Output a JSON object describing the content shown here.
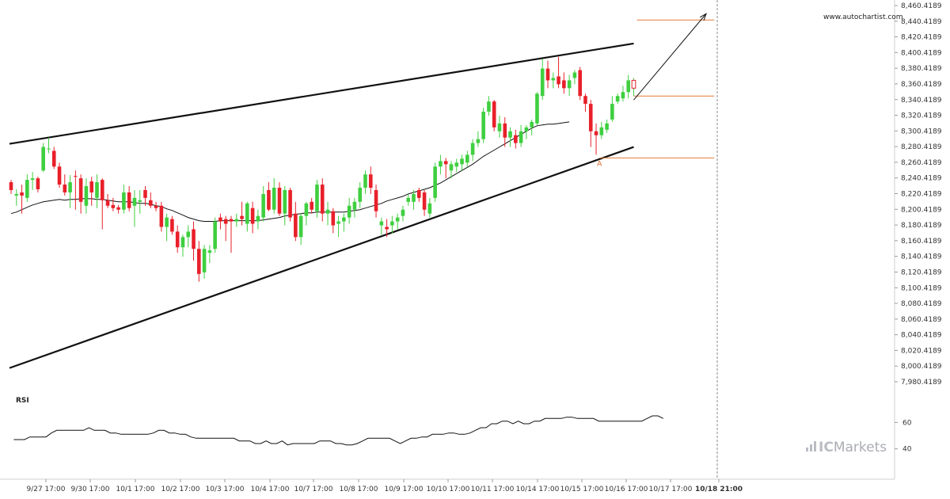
{
  "colors": {
    "bull": "#3fcf3f",
    "bear": "#e8202a",
    "channel": "#111111",
    "level": "#e07b39",
    "ma": "#111111",
    "rsi": "#111111",
    "projection": "#111111",
    "brand": "#a9acb3"
  },
  "watermark": "www.autochartist.com",
  "point_label": "A",
  "brand": {
    "prefix": "IC",
    "suffix": "Markets"
  },
  "rsi": {
    "label": "RSI",
    "ticks": [
      "60",
      "40"
    ]
  },
  "chart_data": {
    "type": "candlestick",
    "title": "",
    "y_ticks": [
      "8,460.4189",
      "8,440.4189",
      "8,420.4189",
      "8,400.4189",
      "8,380.4189",
      "8,360.4189",
      "8,340.4189",
      "8,320.4189",
      "8,300.4189",
      "8,280.4189",
      "8,260.4189",
      "8,240.4189",
      "8,220.4189",
      "8,200.4189",
      "8,180.4189",
      "8,160.4189",
      "8,140.4189",
      "8,120.4189",
      "8,100.4189",
      "8,080.4189",
      "8,060.4189",
      "8,040.4189",
      "8,020.4189",
      "8,000.4189",
      "7,980.4189"
    ],
    "ylim": [
      7980.4189,
      8460.4189
    ],
    "x_ticks": [
      "9/27 17:00",
      "9/30 17:00",
      "10/1 17:00",
      "10/2 17:00",
      "10/3 17:00",
      "10/4 17:00",
      "10/7 17:00",
      "10/8 17:00",
      "10/9 17:00",
      "10/10 17:00",
      "10/11 17:00",
      "10/14 17:00",
      "10/15 17:00",
      "10/16 17:00",
      "10/17 17:00",
      "10/18 21:00"
    ],
    "highlight_x_tick": "10/18 21:00",
    "candles": [
      {
        "o": 8235,
        "h": 8238,
        "l": 8220,
        "c": 8225
      },
      {
        "o": 8218,
        "h": 8226,
        "l": 8205,
        "c": 8220
      },
      {
        "o": 8222,
        "h": 8232,
        "l": 8195,
        "c": 8218
      },
      {
        "o": 8215,
        "h": 8245,
        "l": 8210,
        "c": 8238
      },
      {
        "o": 8238,
        "h": 8248,
        "l": 8225,
        "c": 8240
      },
      {
        "o": 8240,
        "h": 8242,
        "l": 8222,
        "c": 8226
      },
      {
        "o": 8250,
        "h": 8285,
        "l": 8248,
        "c": 8280
      },
      {
        "o": 8278,
        "h": 8292,
        "l": 8272,
        "c": 8278
      },
      {
        "o": 8275,
        "h": 8280,
        "l": 8252,
        "c": 8255
      },
      {
        "o": 8255,
        "h": 8260,
        "l": 8228,
        "c": 8232
      },
      {
        "o": 8232,
        "h": 8245,
        "l": 8218,
        "c": 8222
      },
      {
        "o": 8222,
        "h": 8244,
        "l": 8202,
        "c": 8235
      },
      {
        "o": 8243,
        "h": 8250,
        "l": 8200,
        "c": 8242
      },
      {
        "o": 8240,
        "h": 8245,
        "l": 8195,
        "c": 8210
      },
      {
        "o": 8205,
        "h": 8240,
        "l": 8195,
        "c": 8230
      },
      {
        "o": 8236,
        "h": 8242,
        "l": 8205,
        "c": 8222
      },
      {
        "o": 8215,
        "h": 8245,
        "l": 8202,
        "c": 8235
      },
      {
        "o": 8238,
        "h": 8240,
        "l": 8175,
        "c": 8212
      },
      {
        "o": 8212,
        "h": 8220,
        "l": 8202,
        "c": 8205
      },
      {
        "o": 8206,
        "h": 8215,
        "l": 8198,
        "c": 8202
      },
      {
        "o": 8203,
        "h": 8206,
        "l": 8195,
        "c": 8200
      },
      {
        "o": 8200,
        "h": 8232,
        "l": 8195,
        "c": 8222
      },
      {
        "o": 8222,
        "h": 8230,
        "l": 8198,
        "c": 8202
      },
      {
        "o": 8205,
        "h": 8225,
        "l": 8178,
        "c": 8215
      },
      {
        "o": 8210,
        "h": 8225,
        "l": 8195,
        "c": 8212
      },
      {
        "o": 8225,
        "h": 8230,
        "l": 8205,
        "c": 8215
      },
      {
        "o": 8212,
        "h": 8222,
        "l": 8202,
        "c": 8205
      },
      {
        "o": 8205,
        "h": 8210,
        "l": 8198,
        "c": 8202
      },
      {
        "o": 8205,
        "h": 8210,
        "l": 8172,
        "c": 8178
      },
      {
        "o": 8178,
        "h": 8195,
        "l": 8160,
        "c": 8190
      },
      {
        "o": 8188,
        "h": 8192,
        "l": 8168,
        "c": 8172
      },
      {
        "o": 8172,
        "h": 8180,
        "l": 8145,
        "c": 8152
      },
      {
        "o": 8152,
        "h": 8168,
        "l": 8140,
        "c": 8165
      },
      {
        "o": 8165,
        "h": 8180,
        "l": 8152,
        "c": 8172
      },
      {
        "o": 8175,
        "h": 8185,
        "l": 8135,
        "c": 8150
      },
      {
        "o": 8150,
        "h": 8160,
        "l": 8108,
        "c": 8118
      },
      {
        "o": 8120,
        "h": 8155,
        "l": 8112,
        "c": 8150
      },
      {
        "o": 8145,
        "h": 8155,
        "l": 8132,
        "c": 8148
      },
      {
        "o": 8150,
        "h": 8190,
        "l": 8145,
        "c": 8185
      },
      {
        "o": 8190,
        "h": 8195,
        "l": 8175,
        "c": 8185
      },
      {
        "o": 8188,
        "h": 8192,
        "l": 8160,
        "c": 8182
      },
      {
        "o": 8188,
        "h": 8192,
        "l": 8145,
        "c": 8185
      },
      {
        "o": 8185,
        "h": 8195,
        "l": 8178,
        "c": 8188
      },
      {
        "o": 8192,
        "h": 8210,
        "l": 8180,
        "c": 8188
      },
      {
        "o": 8182,
        "h": 8210,
        "l": 8172,
        "c": 8208
      },
      {
        "o": 8202,
        "h": 8210,
        "l": 8170,
        "c": 8182
      },
      {
        "o": 8185,
        "h": 8200,
        "l": 8175,
        "c": 8192
      },
      {
        "o": 8190,
        "h": 8230,
        "l": 8185,
        "c": 8220
      },
      {
        "o": 8225,
        "h": 8235,
        "l": 8198,
        "c": 8200
      },
      {
        "o": 8200,
        "h": 8240,
        "l": 8195,
        "c": 8228
      },
      {
        "o": 8228,
        "h": 8235,
        "l": 8192,
        "c": 8195
      },
      {
        "o": 8195,
        "h": 8230,
        "l": 8180,
        "c": 8225
      },
      {
        "o": 8225,
        "h": 8228,
        "l": 8185,
        "c": 8190
      },
      {
        "o": 8195,
        "h": 8210,
        "l": 8160,
        "c": 8165
      },
      {
        "o": 8165,
        "h": 8195,
        "l": 8155,
        "c": 8192
      },
      {
        "o": 8192,
        "h": 8210,
        "l": 8180,
        "c": 8208
      },
      {
        "o": 8210,
        "h": 8215,
        "l": 8195,
        "c": 8200
      },
      {
        "o": 8198,
        "h": 8238,
        "l": 8190,
        "c": 8232
      },
      {
        "o": 8232,
        "h": 8240,
        "l": 8185,
        "c": 8195
      },
      {
        "o": 8195,
        "h": 8210,
        "l": 8180,
        "c": 8200
      },
      {
        "o": 8198,
        "h": 8202,
        "l": 8170,
        "c": 8180
      },
      {
        "o": 8182,
        "h": 8192,
        "l": 8165,
        "c": 8185
      },
      {
        "o": 8185,
        "h": 8195,
        "l": 8172,
        "c": 8190
      },
      {
        "o": 8190,
        "h": 8215,
        "l": 8182,
        "c": 8205
      },
      {
        "o": 8200,
        "h": 8215,
        "l": 8190,
        "c": 8210
      },
      {
        "o": 8210,
        "h": 8235,
        "l": 8202,
        "c": 8228
      },
      {
        "o": 8228,
        "h": 8250,
        "l": 8220,
        "c": 8245
      },
      {
        "o": 8245,
        "h": 8255,
        "l": 8220,
        "c": 8228
      },
      {
        "o": 8225,
        "h": 8232,
        "l": 8190,
        "c": 8198
      },
      {
        "o": 8180,
        "h": 8190,
        "l": 8168,
        "c": 8185
      },
      {
        "o": 8178,
        "h": 8188,
        "l": 8165,
        "c": 8175
      },
      {
        "o": 8180,
        "h": 8192,
        "l": 8170,
        "c": 8185
      },
      {
        "o": 8185,
        "h": 8195,
        "l": 8175,
        "c": 8190
      },
      {
        "o": 8192,
        "h": 8205,
        "l": 8185,
        "c": 8200
      },
      {
        "o": 8210,
        "h": 8220,
        "l": 8205,
        "c": 8215
      },
      {
        "o": 8210,
        "h": 8225,
        "l": 8200,
        "c": 8220
      },
      {
        "o": 8225,
        "h": 8228,
        "l": 8210,
        "c": 8215
      },
      {
        "o": 8222,
        "h": 8225,
        "l": 8192,
        "c": 8200
      },
      {
        "o": 8195,
        "h": 8215,
        "l": 8190,
        "c": 8208
      },
      {
        "o": 8215,
        "h": 8260,
        "l": 8210,
        "c": 8255
      },
      {
        "o": 8255,
        "h": 8270,
        "l": 8245,
        "c": 8262
      },
      {
        "o": 8262,
        "h": 8266,
        "l": 8240,
        "c": 8258
      },
      {
        "o": 8250,
        "h": 8262,
        "l": 8240,
        "c": 8258
      },
      {
        "o": 8255,
        "h": 8265,
        "l": 8248,
        "c": 8260
      },
      {
        "o": 8258,
        "h": 8270,
        "l": 8250,
        "c": 8265
      },
      {
        "o": 8260,
        "h": 8275,
        "l": 8255,
        "c": 8270
      },
      {
        "o": 8270,
        "h": 8290,
        "l": 8262,
        "c": 8285
      },
      {
        "o": 8285,
        "h": 8300,
        "l": 8280,
        "c": 8290
      },
      {
        "o": 8290,
        "h": 8330,
        "l": 8285,
        "c": 8325
      },
      {
        "o": 8325,
        "h": 8345,
        "l": 8320,
        "c": 8338
      },
      {
        "o": 8338,
        "h": 8340,
        "l": 8300,
        "c": 8305
      },
      {
        "o": 8300,
        "h": 8320,
        "l": 8292,
        "c": 8310
      },
      {
        "o": 8310,
        "h": 8318,
        "l": 8280,
        "c": 8292
      },
      {
        "o": 8292,
        "h": 8305,
        "l": 8280,
        "c": 8300
      },
      {
        "o": 8295,
        "h": 8302,
        "l": 8278,
        "c": 8285
      },
      {
        "o": 8285,
        "h": 8308,
        "l": 8280,
        "c": 8300
      },
      {
        "o": 8300,
        "h": 8308,
        "l": 8290,
        "c": 8305
      },
      {
        "o": 8305,
        "h": 8315,
        "l": 8295,
        "c": 8312
      },
      {
        "o": 8310,
        "h": 8350,
        "l": 8308,
        "c": 8348
      },
      {
        "o": 8345,
        "h": 8392,
        "l": 8340,
        "c": 8380
      },
      {
        "o": 8380,
        "h": 8390,
        "l": 8355,
        "c": 8365
      },
      {
        "o": 8365,
        "h": 8375,
        "l": 8355,
        "c": 8368
      },
      {
        "o": 8370,
        "h": 8395,
        "l": 8355,
        "c": 8360
      },
      {
        "o": 8365,
        "h": 8375,
        "l": 8348,
        "c": 8355
      },
      {
        "o": 8355,
        "h": 8372,
        "l": 8345,
        "c": 8365
      },
      {
        "o": 8368,
        "h": 8378,
        "l": 8360,
        "c": 8375
      },
      {
        "o": 8378,
        "h": 8382,
        "l": 8340,
        "c": 8345
      },
      {
        "o": 8345,
        "h": 8348,
        "l": 8325,
        "c": 8335
      },
      {
        "o": 8335,
        "h": 8340,
        "l": 8280,
        "c": 8300
      },
      {
        "o": 8300,
        "h": 8310,
        "l": 8270,
        "c": 8295
      },
      {
        "o": 8295,
        "h": 8312,
        "l": 8290,
        "c": 8305
      },
      {
        "o": 8302,
        "h": 8315,
        "l": 8298,
        "c": 8310
      },
      {
        "o": 8315,
        "h": 8345,
        "l": 8312,
        "c": 8335
      },
      {
        "o": 8338,
        "h": 8348,
        "l": 8335,
        "c": 8345
      },
      {
        "o": 8342,
        "h": 8358,
        "l": 8338,
        "c": 8350
      },
      {
        "o": 8350,
        "h": 8372,
        "l": 8342,
        "c": 8365
      },
      {
        "o": 8355,
        "h": 8368,
        "l": 8345,
        "c": 8365
      }
    ],
    "moving_average": [
      8195,
      8197,
      8200,
      8203,
      8206,
      8208,
      8210,
      8211,
      8212,
      8213,
      8212,
      8213,
      8213,
      8214,
      8214,
      8214,
      8213,
      8213,
      8212,
      8211,
      8210,
      8210,
      8210,
      8209,
      8208,
      8208,
      8207,
      8205,
      8204,
      8201,
      8199,
      8196,
      8193,
      8190,
      8188,
      8186,
      8185,
      8185,
      8185,
      8186,
      8186,
      8186,
      8186,
      8186,
      8186,
      8186,
      8186,
      8187,
      8188,
      8189,
      8190,
      8192,
      8193,
      8194,
      8195,
      8196,
      8196,
      8197,
      8197,
      8197,
      8197,
      8197,
      8197,
      8198,
      8199,
      8200,
      8202,
      8204,
      8206,
      8208,
      8211,
      8213,
      8215,
      8217,
      8220,
      8222,
      8224,
      8226,
      8228,
      8231,
      8234,
      8238,
      8242,
      8246,
      8250,
      8254,
      8258,
      8263,
      8268,
      8272,
      8276,
      8280,
      8284,
      8288,
      8292,
      8296,
      8300,
      8304,
      8307,
      8308,
      8309,
      8309,
      8310,
      8311,
      8312
    ],
    "channel_upper": {
      "start": {
        "x": 0,
        "y": 8284
      },
      "end": {
        "x": 116,
        "y": 8412
      }
    },
    "channel_lower": {
      "start": {
        "x": 0,
        "y": 7998
      },
      "end": {
        "x": 116,
        "y": 8280
      }
    },
    "levels": [
      {
        "name": "target",
        "y": 8442,
        "x_from": 116.6,
        "x_to": 131
      },
      {
        "name": "breakout",
        "y": 8345,
        "x_from": 116,
        "x_to": 131
      },
      {
        "name": "point-a",
        "y": 8266,
        "x_from": 109.6,
        "x_to": 131
      }
    ],
    "projection": {
      "start": {
        "x": 116,
        "y": 8340
      },
      "end": {
        "x": 129.5,
        "y": 8450
      }
    },
    "point_a": {
      "x": 109.6,
      "y": 8266
    },
    "rsi_series": [
      47,
      47,
      47,
      49,
      49,
      49,
      49,
      52,
      54,
      54,
      54,
      54,
      54,
      54,
      56,
      54,
      54,
      54,
      52,
      52,
      51,
      51,
      51,
      51,
      51,
      51,
      52,
      54,
      54,
      52,
      52,
      51,
      51,
      49,
      48,
      48,
      48,
      48,
      48,
      48,
      48,
      48,
      46,
      46,
      46,
      44,
      44,
      46,
      44,
      44,
      46,
      43,
      44,
      44,
      44,
      44,
      44,
      46,
      46,
      46,
      44,
      44,
      43,
      43,
      44,
      46,
      48,
      48,
      48,
      48,
      48,
      46,
      44,
      46,
      48,
      48,
      49,
      49,
      51,
      51,
      51,
      52,
      52,
      51,
      51,
      52,
      54,
      56,
      56,
      59,
      59,
      61,
      61,
      59,
      61,
      59,
      59,
      61,
      61,
      63,
      63,
      63,
      63,
      64,
      64,
      63,
      63,
      63,
      63,
      61,
      61,
      61,
      61,
      61,
      61,
      61,
      61,
      61,
      63,
      65,
      65,
      63
    ],
    "rsi_ylim": [
      20,
      80
    ]
  }
}
